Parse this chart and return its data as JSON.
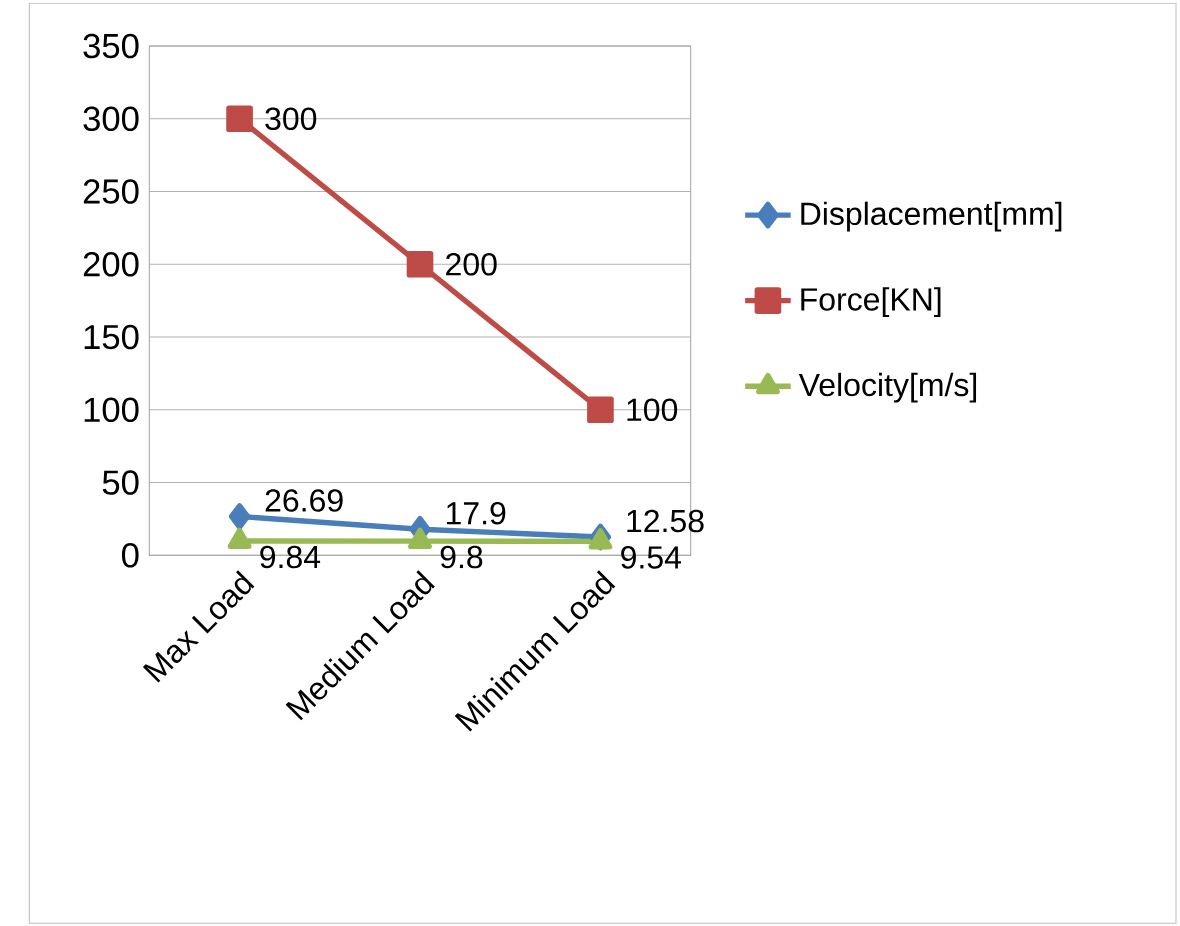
{
  "chart_data": {
    "type": "line",
    "categories": [
      "Max Load",
      "Medium Load",
      "Minimum Load"
    ],
    "series": [
      {
        "name": "Displacement[mm]",
        "color": "#4a7ebb",
        "values": [
          26.69,
          17.9,
          12.58
        ],
        "marker": "diamond"
      },
      {
        "name": "Force[KN]",
        "color": "#be4b48",
        "values": [
          300,
          200,
          100
        ],
        "marker": "square"
      },
      {
        "name": "Velocity[m/s]",
        "color": "#98b954",
        "values": [
          9.84,
          9.8,
          9.54
        ],
        "marker": "triangle"
      }
    ],
    "ylim": [
      0,
      350
    ],
    "yticks": [
      0,
      50,
      100,
      150,
      200,
      250,
      300,
      350
    ],
    "grid": "y",
    "legend": "right",
    "data_labels": true,
    "line_style": "solid"
  }
}
